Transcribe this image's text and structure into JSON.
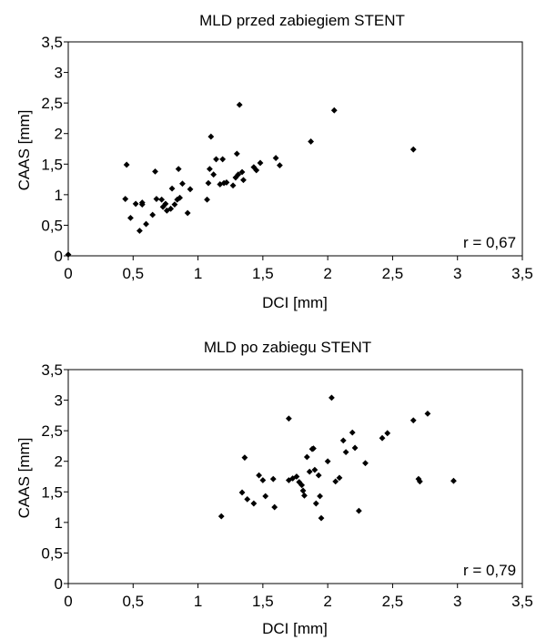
{
  "chart_data": [
    {
      "type": "scatter",
      "title": "MLD przed zabiegiem STENT",
      "xlabel": "DCI [mm]",
      "ylabel": "CAAS [mm]",
      "xlim": [
        0,
        3.5
      ],
      "ylim": [
        0,
        3.5
      ],
      "x_ticks": [
        "0",
        "0,5",
        "1",
        "1,5",
        "2",
        "2,5",
        "3",
        "3,5"
      ],
      "y_ticks": [
        "0",
        "0,5",
        "1",
        "1,5",
        "2",
        "2,5",
        "3",
        "3,5"
      ],
      "annotation": "r = 0,67",
      "grid": false,
      "points": [
        [
          0.0,
          0.02
        ],
        [
          0.44,
          0.93
        ],
        [
          0.45,
          1.49
        ],
        [
          0.48,
          0.62
        ],
        [
          0.52,
          0.85
        ],
        [
          0.55,
          0.41
        ],
        [
          0.57,
          0.84
        ],
        [
          0.57,
          0.87
        ],
        [
          0.6,
          0.52
        ],
        [
          0.65,
          0.67
        ],
        [
          0.67,
          1.38
        ],
        [
          0.68,
          0.93
        ],
        [
          0.72,
          0.92
        ],
        [
          0.73,
          0.8
        ],
        [
          0.75,
          0.85
        ],
        [
          0.76,
          0.74
        ],
        [
          0.79,
          0.77
        ],
        [
          0.8,
          1.1
        ],
        [
          0.82,
          0.84
        ],
        [
          0.84,
          0.92
        ],
        [
          0.85,
          1.42
        ],
        [
          0.86,
          0.95
        ],
        [
          0.88,
          1.18
        ],
        [
          0.92,
          0.7
        ],
        [
          0.94,
          1.09
        ],
        [
          1.07,
          0.92
        ],
        [
          1.08,
          1.19
        ],
        [
          1.09,
          1.42
        ],
        [
          1.1,
          1.95
        ],
        [
          1.12,
          1.33
        ],
        [
          1.14,
          1.58
        ],
        [
          1.17,
          1.17
        ],
        [
          1.19,
          1.58
        ],
        [
          1.2,
          1.19
        ],
        [
          1.22,
          1.2
        ],
        [
          1.27,
          1.15
        ],
        [
          1.29,
          1.28
        ],
        [
          1.3,
          1.67
        ],
        [
          1.31,
          1.33
        ],
        [
          1.32,
          2.47
        ],
        [
          1.34,
          1.37
        ],
        [
          1.35,
          1.24
        ],
        [
          1.43,
          1.45
        ],
        [
          1.45,
          1.4
        ],
        [
          1.48,
          1.52
        ],
        [
          1.6,
          1.6
        ],
        [
          1.63,
          1.48
        ],
        [
          1.87,
          1.87
        ],
        [
          2.05,
          2.38
        ],
        [
          2.66,
          1.74
        ]
      ]
    },
    {
      "type": "scatter",
      "title": "MLD po zabiegu STENT",
      "xlabel": "DCI [mm]",
      "ylabel": "CAAS [mm]",
      "xlim": [
        0,
        3.5
      ],
      "ylim": [
        0,
        3.5
      ],
      "x_ticks": [
        "0",
        "0,5",
        "1",
        "1,5",
        "2",
        "2,5",
        "3",
        "3,5"
      ],
      "y_ticks": [
        "0",
        "0,5",
        "1",
        "1,5",
        "2",
        "2,5",
        "3",
        "3,5"
      ],
      "annotation": "r = 0,79",
      "grid": false,
      "points": [
        [
          1.18,
          1.1
        ],
        [
          1.34,
          1.49
        ],
        [
          1.36,
          2.06
        ],
        [
          1.38,
          1.38
        ],
        [
          1.43,
          1.31
        ],
        [
          1.47,
          1.77
        ],
        [
          1.5,
          1.69
        ],
        [
          1.52,
          1.43
        ],
        [
          1.58,
          1.71
        ],
        [
          1.59,
          1.25
        ],
        [
          1.7,
          2.7
        ],
        [
          1.7,
          1.69
        ],
        [
          1.73,
          1.72
        ],
        [
          1.76,
          1.75
        ],
        [
          1.78,
          1.66
        ],
        [
          1.8,
          1.61
        ],
        [
          1.81,
          1.52
        ],
        [
          1.82,
          1.44
        ],
        [
          1.84,
          2.07
        ],
        [
          1.86,
          1.83
        ],
        [
          1.88,
          2.2
        ],
        [
          1.89,
          2.21
        ],
        [
          1.9,
          1.86
        ],
        [
          1.91,
          1.31
        ],
        [
          1.93,
          1.77
        ],
        [
          1.94,
          1.43
        ],
        [
          1.95,
          1.07
        ],
        [
          2.0,
          2.0
        ],
        [
          2.03,
          3.04
        ],
        [
          2.06,
          1.67
        ],
        [
          2.09,
          1.73
        ],
        [
          2.12,
          2.34
        ],
        [
          2.14,
          2.15
        ],
        [
          2.19,
          2.47
        ],
        [
          2.21,
          2.22
        ],
        [
          2.24,
          1.19
        ],
        [
          2.29,
          1.97
        ],
        [
          2.42,
          2.38
        ],
        [
          2.46,
          2.46
        ],
        [
          2.66,
          2.67
        ],
        [
          2.7,
          1.71
        ],
        [
          2.71,
          1.67
        ],
        [
          2.77,
          2.78
        ],
        [
          2.97,
          1.68
        ]
      ]
    }
  ]
}
